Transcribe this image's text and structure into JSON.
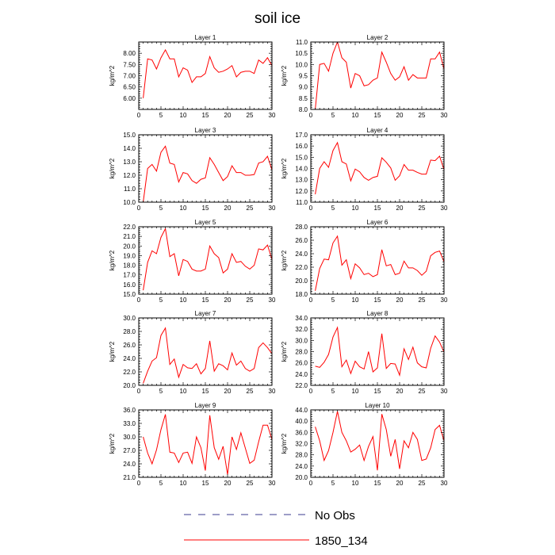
{
  "title": "soil ice",
  "legend": {
    "placement": "bottom-center",
    "entries": [
      {
        "label": "No Obs",
        "color": "#3b3b8f",
        "style": "dashed"
      },
      {
        "label": "1850_134",
        "color": "#ff0000",
        "style": "solid"
      }
    ]
  },
  "chart_data": [
    {
      "type": "line",
      "title": "Layer 1",
      "ylabel": "kg/m^2",
      "xlim": [
        0,
        30
      ],
      "xticks": [
        0,
        5,
        10,
        15,
        20,
        25,
        30
      ],
      "ylim": [
        5.5,
        8.5
      ],
      "yticks": [
        6.0,
        6.5,
        7.0,
        7.5,
        8.0
      ],
      "ytick_labels": [
        "6.00",
        "6.50",
        "7.00",
        "7.50",
        "8.00"
      ],
      "x": [
        1,
        2,
        3,
        4,
        5,
        6,
        7,
        8,
        9,
        10,
        11,
        12,
        13,
        14,
        15,
        16,
        17,
        18,
        19,
        20,
        21,
        22,
        23,
        24,
        25,
        26,
        27,
        28,
        29,
        30
      ],
      "series": [
        {
          "name": "1850_134",
          "color": "#ff0000",
          "values": [
            6.0,
            7.75,
            7.7,
            7.3,
            7.8,
            8.15,
            7.75,
            7.75,
            6.95,
            7.35,
            7.25,
            6.7,
            6.95,
            6.95,
            7.1,
            7.85,
            7.35,
            7.15,
            7.2,
            7.3,
            7.45,
            6.95,
            7.15,
            7.2,
            7.2,
            7.1,
            7.7,
            7.55,
            7.8,
            7.45
          ]
        }
      ]
    },
    {
      "type": "line",
      "title": "Layer 2",
      "ylabel": "kg/m^2",
      "xlim": [
        0,
        30
      ],
      "xticks": [
        0,
        5,
        10,
        15,
        20,
        25,
        30
      ],
      "ylim": [
        8.0,
        11.0
      ],
      "yticks": [
        8.0,
        8.5,
        9.0,
        9.5,
        10.0,
        10.5,
        11.0
      ],
      "ytick_labels": [
        "8.0",
        "8.5",
        "9.0",
        "9.5",
        "10.0",
        "10.5",
        "11.0"
      ],
      "x": [
        1,
        2,
        3,
        4,
        5,
        6,
        7,
        8,
        9,
        10,
        11,
        12,
        13,
        14,
        15,
        16,
        17,
        18,
        19,
        20,
        21,
        22,
        23,
        24,
        25,
        26,
        27,
        28,
        29,
        30
      ],
      "series": [
        {
          "name": "1850_134",
          "color": "#ff0000",
          "values": [
            8.0,
            10.0,
            10.05,
            9.7,
            10.5,
            11.0,
            10.3,
            10.1,
            8.95,
            9.6,
            9.5,
            9.05,
            9.1,
            9.3,
            9.4,
            10.55,
            10.1,
            9.6,
            9.3,
            9.45,
            9.9,
            9.3,
            9.55,
            9.4,
            9.4,
            9.4,
            10.25,
            10.25,
            10.55,
            9.8
          ]
        }
      ]
    },
    {
      "type": "line",
      "title": "Layer 3",
      "ylabel": "kg/m^2",
      "xlim": [
        0,
        30
      ],
      "xticks": [
        0,
        5,
        10,
        15,
        20,
        25,
        30
      ],
      "ylim": [
        10.0,
        15.0
      ],
      "yticks": [
        10.0,
        11.0,
        12.0,
        13.0,
        14.0,
        15.0
      ],
      "ytick_labels": [
        "10.0",
        "11.0",
        "12.0",
        "13.0",
        "14.0",
        "15.0"
      ],
      "x": [
        1,
        2,
        3,
        4,
        5,
        6,
        7,
        8,
        9,
        10,
        11,
        12,
        13,
        14,
        15,
        16,
        17,
        18,
        19,
        20,
        21,
        22,
        23,
        24,
        25,
        26,
        27,
        28,
        29,
        30
      ],
      "series": [
        {
          "name": "1850_134",
          "color": "#ff0000",
          "values": [
            10.0,
            12.5,
            12.8,
            12.3,
            13.7,
            14.15,
            12.9,
            12.8,
            11.5,
            12.2,
            12.1,
            11.6,
            11.4,
            11.7,
            11.8,
            13.3,
            12.8,
            12.2,
            11.6,
            11.9,
            12.7,
            12.2,
            12.2,
            12.0,
            12.0,
            12.05,
            12.9,
            13.0,
            13.4,
            12.4
          ]
        }
      ]
    },
    {
      "type": "line",
      "title": "Layer 4",
      "ylabel": "kg/m^2",
      "xlim": [
        0,
        30
      ],
      "xticks": [
        0,
        5,
        10,
        15,
        20,
        25,
        30
      ],
      "ylim": [
        11.0,
        17.0
      ],
      "yticks": [
        11.0,
        12.0,
        13.0,
        14.0,
        15.0,
        16.0,
        17.0
      ],
      "ytick_labels": [
        "11.0",
        "12.0",
        "13.0",
        "14.0",
        "15.0",
        "16.0",
        "17.0"
      ],
      "x": [
        1,
        2,
        3,
        4,
        5,
        6,
        7,
        8,
        9,
        10,
        11,
        12,
        13,
        14,
        15,
        16,
        17,
        18,
        19,
        20,
        21,
        22,
        23,
        24,
        25,
        26,
        27,
        28,
        29,
        30
      ],
      "series": [
        {
          "name": "1850_134",
          "color": "#ff0000",
          "values": [
            11.7,
            14.0,
            14.6,
            14.1,
            15.6,
            16.3,
            14.6,
            14.4,
            12.9,
            13.95,
            13.7,
            13.2,
            12.95,
            13.2,
            13.3,
            14.95,
            14.55,
            14.05,
            12.95,
            13.35,
            14.35,
            13.85,
            13.85,
            13.65,
            13.5,
            13.5,
            14.75,
            14.7,
            15.1,
            13.9
          ]
        }
      ]
    },
    {
      "type": "line",
      "title": "Layer 5",
      "ylabel": "kg/m^2",
      "xlim": [
        0,
        30
      ],
      "xticks": [
        0,
        5,
        10,
        15,
        20,
        25,
        30
      ],
      "ylim": [
        15.0,
        22.0
      ],
      "yticks": [
        15.0,
        16.0,
        17.0,
        18.0,
        19.0,
        20.0,
        21.0,
        22.0
      ],
      "ytick_labels": [
        "15.0",
        "16.0",
        "17.0",
        "18.0",
        "19.0",
        "20.0",
        "21.0",
        "22.0"
      ],
      "x": [
        1,
        2,
        3,
        4,
        5,
        6,
        7,
        8,
        9,
        10,
        11,
        12,
        13,
        14,
        15,
        16,
        17,
        18,
        19,
        20,
        21,
        22,
        23,
        24,
        25,
        26,
        27,
        28,
        29,
        30
      ],
      "series": [
        {
          "name": "1850_134",
          "color": "#ff0000",
          "values": [
            15.4,
            18.3,
            19.5,
            19.2,
            20.9,
            21.8,
            18.9,
            19.2,
            16.9,
            18.6,
            18.4,
            17.6,
            17.4,
            17.4,
            17.6,
            20.0,
            19.2,
            18.8,
            17.2,
            17.6,
            19.2,
            18.3,
            18.4,
            17.9,
            17.6,
            18.0,
            19.7,
            19.6,
            20.1,
            18.6
          ]
        }
      ]
    },
    {
      "type": "line",
      "title": "Layer 6",
      "ylabel": "kg/m^2",
      "xlim": [
        0,
        30
      ],
      "xticks": [
        0,
        5,
        10,
        15,
        20,
        25,
        30
      ],
      "ylim": [
        18.0,
        28.0
      ],
      "yticks": [
        18.0,
        20.0,
        22.0,
        24.0,
        26.0,
        28.0
      ],
      "ytick_labels": [
        "18.0",
        "20.0",
        "22.0",
        "24.0",
        "26.0",
        "28.0"
      ],
      "x": [
        1,
        2,
        3,
        4,
        5,
        6,
        7,
        8,
        9,
        10,
        11,
        12,
        13,
        14,
        15,
        16,
        17,
        18,
        19,
        20,
        21,
        22,
        23,
        24,
        25,
        26,
        27,
        28,
        29,
        30
      ],
      "series": [
        {
          "name": "1850_134",
          "color": "#ff0000",
          "values": [
            18.5,
            21.8,
            23.2,
            23.1,
            25.6,
            26.6,
            22.3,
            23.1,
            20.3,
            22.5,
            21.9,
            20.9,
            21.1,
            20.6,
            20.9,
            24.6,
            22.2,
            22.4,
            20.9,
            21.1,
            22.9,
            21.9,
            21.9,
            21.5,
            20.8,
            21.4,
            23.7,
            24.2,
            24.4,
            22.8
          ]
        }
      ]
    },
    {
      "type": "line",
      "title": "Layer 7",
      "ylabel": "kg/m^2",
      "xlim": [
        0,
        30
      ],
      "xticks": [
        0,
        5,
        10,
        15,
        20,
        25,
        30
      ],
      "ylim": [
        20.0,
        30.0
      ],
      "yticks": [
        20.0,
        22.0,
        24.0,
        26.0,
        28.0,
        30.0
      ],
      "ytick_labels": [
        "20.0",
        "22.0",
        "24.0",
        "26.0",
        "28.0",
        "30.0"
      ],
      "x": [
        1,
        2,
        3,
        4,
        5,
        6,
        7,
        8,
        9,
        10,
        11,
        12,
        13,
        14,
        15,
        16,
        17,
        18,
        19,
        20,
        21,
        22,
        23,
        24,
        25,
        26,
        27,
        28,
        29,
        30
      ],
      "series": [
        {
          "name": "1850_134",
          "color": "#ff0000",
          "values": [
            20.3,
            22.1,
            23.6,
            24.1,
            27.4,
            28.5,
            23.1,
            23.9,
            21.2,
            23.1,
            22.6,
            22.5,
            23.2,
            21.7,
            22.5,
            26.6,
            22.1,
            23.2,
            22.9,
            22.3,
            24.8,
            23.0,
            23.6,
            22.5,
            22.1,
            22.5,
            25.6,
            26.3,
            25.6,
            24.7
          ]
        }
      ]
    },
    {
      "type": "line",
      "title": "Layer 8",
      "ylabel": "kg/m^2",
      "xlim": [
        0,
        30
      ],
      "xticks": [
        0,
        5,
        10,
        15,
        20,
        25,
        30
      ],
      "ylim": [
        22.0,
        34.0
      ],
      "yticks": [
        22.0,
        24.0,
        26.0,
        28.0,
        30.0,
        32.0,
        34.0
      ],
      "ytick_labels": [
        "22.0",
        "24.0",
        "26.0",
        "28.0",
        "30.0",
        "32.0",
        "34.0"
      ],
      "x": [
        1,
        2,
        3,
        4,
        5,
        6,
        7,
        8,
        9,
        10,
        11,
        12,
        13,
        14,
        15,
        16,
        17,
        18,
        19,
        20,
        21,
        22,
        23,
        24,
        25,
        26,
        27,
        28,
        29,
        30
      ],
      "series": [
        {
          "name": "1850_134",
          "color": "#ff0000",
          "values": [
            25.4,
            25.2,
            26.1,
            27.5,
            30.6,
            32.3,
            25.3,
            26.5,
            24.1,
            26.3,
            25.3,
            24.9,
            28.0,
            24.4,
            25.1,
            31.2,
            25.0,
            25.9,
            25.8,
            23.8,
            28.5,
            26.6,
            28.8,
            26.0,
            25.3,
            25.1,
            28.6,
            30.8,
            29.7,
            27.9
          ]
        }
      ]
    },
    {
      "type": "line",
      "title": "Layer 9",
      "ylabel": "kg/m^2",
      "xlim": [
        0,
        30
      ],
      "xticks": [
        0,
        5,
        10,
        15,
        20,
        25,
        30
      ],
      "ylim": [
        21.0,
        36.0
      ],
      "yticks": [
        21.0,
        24.0,
        27.0,
        30.0,
        33.0,
        36.0
      ],
      "ytick_labels": [
        "21.0",
        "24.0",
        "27.0",
        "30.0",
        "33.0",
        "36.0"
      ],
      "x": [
        1,
        2,
        3,
        4,
        5,
        6,
        7,
        8,
        9,
        10,
        11,
        12,
        13,
        14,
        15,
        16,
        17,
        18,
        19,
        20,
        21,
        22,
        23,
        24,
        25,
        26,
        27,
        28,
        29,
        30
      ],
      "series": [
        {
          "name": "1850_134",
          "color": "#ff0000",
          "values": [
            30.0,
            26.4,
            24.0,
            27.1,
            31.6,
            35.0,
            26.6,
            26.4,
            24.3,
            26.4,
            26.6,
            24.1,
            30.0,
            27.6,
            22.5,
            34.8,
            27.6,
            25.0,
            27.9,
            21.6,
            30.0,
            27.2,
            30.9,
            27.5,
            24.1,
            24.8,
            28.9,
            32.6,
            32.6,
            29.4
          ]
        }
      ]
    },
    {
      "type": "line",
      "title": "Layer 10",
      "ylabel": "kg/m^2",
      "xlim": [
        0,
        30
      ],
      "xticks": [
        0,
        5,
        10,
        15,
        20,
        25,
        30
      ],
      "ylim": [
        20.0,
        44.0
      ],
      "yticks": [
        20.0,
        24.0,
        28.0,
        32.0,
        36.0,
        40.0,
        44.0
      ],
      "ytick_labels": [
        "20.0",
        "24.0",
        "28.0",
        "32.0",
        "36.0",
        "40.0",
        "44.0"
      ],
      "x": [
        1,
        2,
        3,
        4,
        5,
        6,
        7,
        8,
        9,
        10,
        11,
        12,
        13,
        14,
        15,
        16,
        17,
        18,
        19,
        20,
        21,
        22,
        23,
        24,
        25,
        26,
        27,
        28,
        29,
        30
      ],
      "series": [
        {
          "name": "1850_134",
          "color": "#ff0000",
          "values": [
            38.0,
            33.0,
            26.0,
            29.5,
            36.0,
            43.5,
            36.0,
            33.0,
            29.0,
            30.0,
            31.5,
            26.0,
            31.0,
            34.5,
            22.5,
            42.5,
            37.0,
            27.5,
            33.5,
            23.0,
            33.0,
            30.5,
            36.0,
            33.5,
            26.0,
            26.5,
            30.5,
            37.0,
            38.5,
            33.0
          ]
        }
      ]
    }
  ]
}
